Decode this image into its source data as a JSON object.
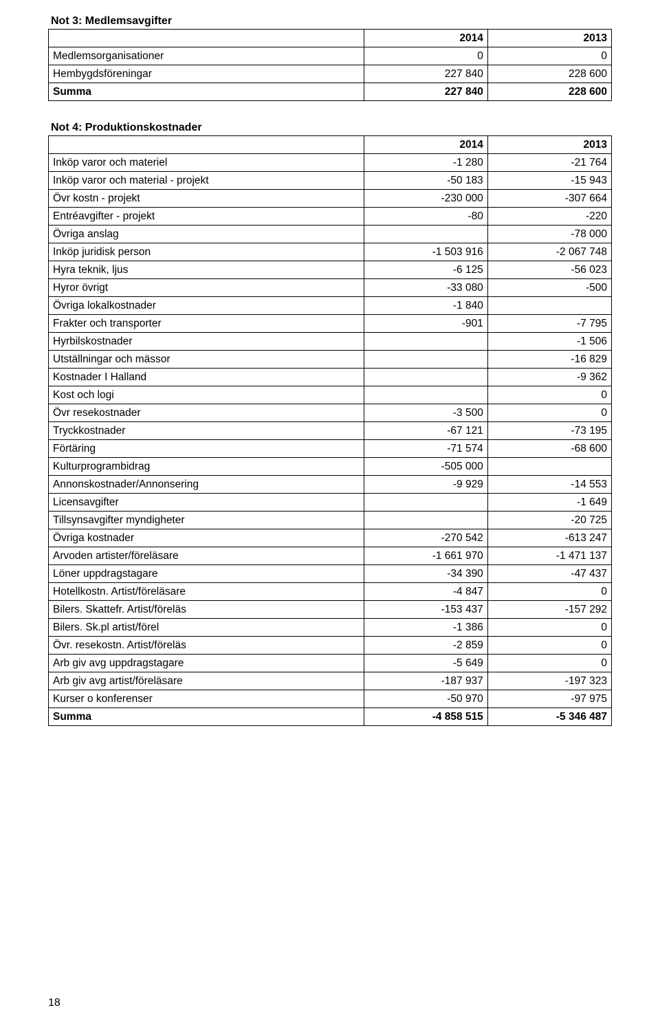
{
  "note3": {
    "title": "Not 3: Medlemsavgifter",
    "year1": "2014",
    "year2": "2013",
    "rows": [
      {
        "label": "Medlemsorganisationer",
        "a": "0",
        "b": "0"
      },
      {
        "label": "Hembygdsföreningar",
        "a": "227 840",
        "b": "228 600"
      }
    ],
    "sum": {
      "label": "Summa",
      "a": "227 840",
      "b": "228 600"
    }
  },
  "note4": {
    "title": "Not 4: Produktionskostnader",
    "year1": "2014",
    "year2": "2013",
    "rows": [
      {
        "label": "Inköp varor och materiel",
        "a": "-1 280",
        "b": "-21 764"
      },
      {
        "label": "Inköp varor och material - projekt",
        "a": "-50 183",
        "b": "-15 943"
      },
      {
        "label": "Övr kostn - projekt",
        "a": "-230 000",
        "b": "-307 664"
      },
      {
        "label": "Entréavgifter - projekt",
        "a": "-80",
        "b": "-220"
      },
      {
        "label": "Övriga anslag",
        "a": "",
        "b": "-78 000"
      },
      {
        "label": "Inköp juridisk person",
        "a": "-1 503 916",
        "b": "-2 067 748"
      },
      {
        "label": "Hyra teknik, ljus",
        "a": "-6 125",
        "b": "-56 023"
      },
      {
        "label": "Hyror övrigt",
        "a": "-33 080",
        "b": "-500"
      },
      {
        "label": "Övriga lokalkostnader",
        "a": "-1 840",
        "b": ""
      },
      {
        "label": "Frakter och transporter",
        "a": "-901",
        "b": "-7 795"
      },
      {
        "label": "Hyrbilskostnader",
        "a": "",
        "b": "-1 506"
      },
      {
        "label": "Utställningar och mässor",
        "a": "",
        "b": "-16 829"
      },
      {
        "label": "Kostnader I Halland",
        "a": "",
        "b": "-9 362"
      },
      {
        "label": "Kost och logi",
        "a": "",
        "b": "0"
      },
      {
        "label": "Övr resekostnader",
        "a": "-3 500",
        "b": "0"
      },
      {
        "label": "Tryckkostnader",
        "a": "-67 121",
        "b": "-73 195"
      },
      {
        "label": "Förtäring",
        "a": "-71 574",
        "b": "-68 600"
      },
      {
        "label": "Kulturprogrambidrag",
        "a": "-505 000",
        "b": ""
      },
      {
        "label": "Annonskostnader/Annonsering",
        "a": "-9 929",
        "b": "-14 553"
      },
      {
        "label": "Licensavgifter",
        "a": "",
        "b": "-1 649"
      },
      {
        "label": "Tillsynsavgifter myndigheter",
        "a": "",
        "b": "-20 725"
      },
      {
        "label": "Övriga kostnader",
        "a": "-270 542",
        "b": "-613 247"
      },
      {
        "label": "Arvoden artister/föreläsare",
        "a": "-1 661 970",
        "b": "-1 471 137"
      },
      {
        "label": "Löner uppdragstagare",
        "a": "-34 390",
        "b": "-47 437"
      },
      {
        "label": "Hotellkostn. Artist/föreläsare",
        "a": "-4 847",
        "b": "0"
      },
      {
        "label": "Bilers. Skattefr. Artist/föreläs",
        "a": "-153 437",
        "b": "-157 292"
      },
      {
        "label": "Bilers. Sk.pl artist/förel",
        "a": "-1 386",
        "b": "0"
      },
      {
        "label": "Övr. resekostn. Artist/föreläs",
        "a": "-2 859",
        "b": "0"
      },
      {
        "label": "Arb giv avg uppdragstagare",
        "a": "-5 649",
        "b": "0"
      },
      {
        "label": "Arb giv avg artist/föreläsare",
        "a": "-187 937",
        "b": "-197 323"
      },
      {
        "label": "Kurser o konferenser",
        "a": "-50 970",
        "b": "-97 975"
      }
    ],
    "sum": {
      "label": "Summa",
      "a": "-4 858 515",
      "b": "-5 346 487"
    }
  },
  "page_number": "18"
}
